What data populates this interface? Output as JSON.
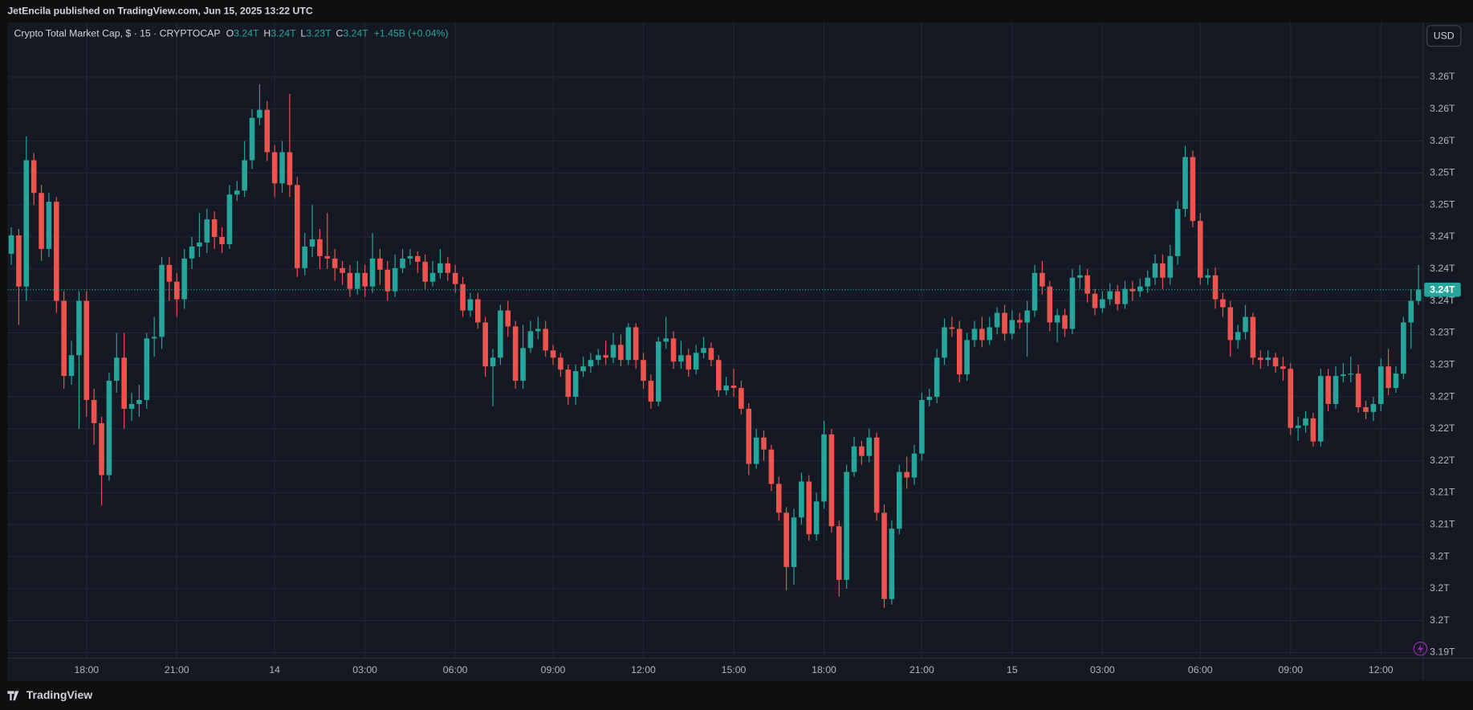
{
  "header": {
    "publisher": "JetEncila published on TradingView.com, Jun 15, 2025 13:22 UTC",
    "currency_button": "USD",
    "footer_brand": "TradingView"
  },
  "chart_data": {
    "type": "candlestick",
    "title": "Crypto Total Market Cap, $ · 15 · CRYPTOCAP",
    "ohlc_legend": [
      {
        "label": "O",
        "value": "3.24T"
      },
      {
        "label": "H",
        "value": "3.24T"
      },
      {
        "label": "L",
        "value": "3.23T"
      },
      {
        "label": "C",
        "value": "3.24T"
      }
    ],
    "change": "+1.45B (+0.04%)",
    "up_color": "#26a69a",
    "down_color": "#ef5350",
    "grid": true,
    "last_price": {
      "value": 3.2374,
      "label": "3.24T"
    },
    "ylim": [
      3.1913,
      3.2708
    ],
    "yticks": [
      {
        "value": 3.264,
        "label": "3.26T"
      },
      {
        "value": 3.26,
        "label": "3.26T"
      },
      {
        "value": 3.256,
        "label": "3.26T"
      },
      {
        "value": 3.252,
        "label": "3.25T"
      },
      {
        "value": 3.248,
        "label": "3.25T"
      },
      {
        "value": 3.244,
        "label": "3.24T"
      },
      {
        "value": 3.24,
        "label": "3.24T"
      },
      {
        "value": 3.236,
        "label": "3.24T"
      },
      {
        "value": 3.232,
        "label": "3.23T"
      },
      {
        "value": 3.228,
        "label": "3.23T"
      },
      {
        "value": 3.224,
        "label": "3.22T"
      },
      {
        "value": 3.22,
        "label": "3.22T"
      },
      {
        "value": 3.216,
        "label": "3.22T"
      },
      {
        "value": 3.212,
        "label": "3.21T"
      },
      {
        "value": 3.208,
        "label": "3.21T"
      },
      {
        "value": 3.204,
        "label": "3.2T"
      },
      {
        "value": 3.2,
        "label": "3.2T"
      },
      {
        "value": 3.196,
        "label": "3.2T"
      },
      {
        "value": 3.192,
        "label": "3.19T"
      }
    ],
    "categories": [
      null,
      null,
      null,
      null,
      null,
      null,
      null,
      null,
      null,
      null,
      "18:00",
      null,
      null,
      null,
      null,
      null,
      null,
      null,
      null,
      null,
      null,
      null,
      "21:00",
      null,
      null,
      null,
      null,
      null,
      null,
      null,
      null,
      null,
      null,
      null,
      null,
      "14",
      null,
      null,
      null,
      null,
      null,
      null,
      null,
      null,
      null,
      null,
      null,
      "03:00",
      null,
      null,
      null,
      null,
      null,
      null,
      null,
      null,
      null,
      null,
      null,
      "06:00",
      null,
      null,
      null,
      null,
      null,
      null,
      null,
      null,
      null,
      null,
      null,
      null,
      "09:00",
      null,
      null,
      null,
      null,
      null,
      null,
      null,
      null,
      null,
      null,
      null,
      "12:00",
      null,
      null,
      null,
      null,
      null,
      null,
      null,
      null,
      null,
      null,
      null,
      "15:00",
      null,
      null,
      null,
      null,
      null,
      null,
      null,
      null,
      null,
      null,
      null,
      "18:00",
      null,
      null,
      null,
      null,
      null,
      null,
      null,
      null,
      null,
      null,
      null,
      null,
      "21:00",
      null,
      null,
      null,
      null,
      null,
      null,
      null,
      null,
      null,
      null,
      null,
      "15",
      null,
      null,
      null,
      null,
      null,
      null,
      null,
      null,
      null,
      null,
      null,
      "03:00",
      null,
      null,
      null,
      null,
      null,
      null,
      null,
      null,
      null,
      null,
      null,
      null,
      "06:00",
      null,
      null,
      null,
      null,
      null,
      null,
      null,
      null,
      null,
      null,
      null,
      "09:00",
      null,
      null,
      null,
      null,
      null,
      null,
      null,
      null,
      null,
      null,
      null,
      "12:00",
      null,
      null,
      null,
      null,
      null
    ],
    "open": [
      3.2419,
      3.2442,
      3.2378,
      3.2536,
      3.2495,
      3.2425,
      3.2484,
      3.236,
      3.2266,
      3.2292,
      3.236,
      3.2236,
      3.2207,
      3.2142,
      3.226,
      3.2289,
      3.2225,
      3.2231,
      3.2236,
      3.2313,
      3.2315,
      3.2405,
      3.2384,
      3.2362,
      3.2413,
      3.2428,
      3.2433,
      3.2462,
      3.244,
      3.2431,
      3.2493,
      3.2498,
      3.2536,
      3.2589,
      3.2599,
      3.2546,
      3.2507,
      3.2546,
      3.2505,
      3.2401,
      3.2428,
      3.2437,
      3.2416,
      3.2413,
      3.2401,
      3.2395,
      3.2375,
      3.2395,
      3.2378,
      3.2413,
      3.2399,
      3.2372,
      3.2401,
      3.2413,
      3.2416,
      3.2409,
      3.2384,
      3.2395,
      3.2407,
      3.2395,
      3.2381,
      3.2348,
      3.2362,
      3.2333,
      3.2278,
      3.2289,
      3.2348,
      3.2328,
      3.226,
      3.2301,
      3.2322,
      3.2325,
      3.2298,
      3.2289,
      3.2274,
      3.224,
      3.2272,
      3.2278,
      3.2286,
      3.2292,
      3.2289,
      3.2305,
      3.2286,
      3.2327,
      3.2286,
      3.226,
      3.2234,
      3.2309,
      3.2313,
      3.2284,
      3.2292,
      3.2274,
      3.2295,
      3.2301,
      3.2286,
      3.2248,
      3.2254,
      3.2251,
      3.2225,
      3.2156,
      3.2189,
      3.2174,
      3.2131,
      3.2095,
      3.2027,
      3.2089,
      3.2134,
      3.2068,
      3.2109,
      3.2193,
      3.2078,
      3.2011,
      3.2146,
      3.2178,
      3.2166,
      3.2189,
      3.2095,
      3.1987,
      3.2075,
      3.2146,
      3.2139,
      3.2169,
      3.2236,
      3.224,
      3.2289,
      3.2327,
      3.2325,
      3.2268,
      3.2311,
      3.2325,
      3.2311,
      3.2327,
      3.2345,
      3.2319,
      3.2336,
      3.2333,
      3.2348,
      3.2395,
      3.2378,
      3.2333,
      3.2342,
      3.2325,
      3.2389,
      3.2392,
      3.2369,
      3.2351,
      3.2362,
      3.2372,
      3.2356,
      3.2375,
      3.2372,
      3.2378,
      3.2389,
      3.2407,
      3.2389,
      3.2416,
      3.2475,
      3.254,
      3.246,
      3.2389,
      3.2392,
      3.2362,
      3.2352,
      3.2311,
      3.2321,
      3.234,
      3.2289,
      3.2286,
      3.2289,
      3.2278,
      3.2275,
      3.2201,
      3.2204,
      3.2213,
      3.2184,
      3.2266,
      3.2231,
      3.2266,
      3.2268,
      3.2269,
      3.2227,
      3.2221,
      3.2231,
      3.2278,
      3.2251,
      3.2269,
      3.2333,
      3.236
    ],
    "high": [
      3.2452,
      3.245,
      3.2566,
      3.2545,
      3.2505,
      3.2495,
      3.249,
      3.2372,
      3.231,
      3.2372,
      3.2372,
      3.225,
      3.2215,
      3.227,
      3.232,
      3.232,
      3.2245,
      3.2255,
      3.232,
      3.234,
      3.2415,
      3.2415,
      3.2395,
      3.2425,
      3.244,
      3.247,
      3.2475,
      3.2472,
      3.2452,
      3.2505,
      3.251,
      3.256,
      3.26,
      3.2631,
      3.261,
      3.2555,
      3.256,
      3.2619,
      3.2515,
      3.2445,
      3.248,
      3.245,
      3.247,
      3.2425,
      3.241,
      3.2405,
      3.241,
      3.2405,
      3.2445,
      3.2425,
      3.241,
      3.2418,
      3.2425,
      3.2425,
      3.2422,
      3.2418,
      3.241,
      3.2425,
      3.2415,
      3.2405,
      3.239,
      3.237,
      3.237,
      3.234,
      3.23,
      3.2355,
      3.236,
      3.2335,
      3.233,
      3.2335,
      3.234,
      3.2335,
      3.2305,
      3.2295,
      3.228,
      3.228,
      3.229,
      3.2295,
      3.23,
      3.231,
      3.232,
      3.2318,
      3.2332,
      3.2332,
      3.2295,
      3.2268,
      3.2315,
      3.234,
      3.2322,
      3.231,
      3.23,
      3.2305,
      3.2315,
      3.2308,
      3.2292,
      3.2265,
      3.2275,
      3.226,
      3.2232,
      3.22,
      3.2198,
      3.218,
      3.214,
      3.2102,
      3.21,
      3.2145,
      3.2142,
      3.212,
      3.221,
      3.22,
      3.2085,
      3.2155,
      3.219,
      3.2185,
      3.22,
      3.2195,
      3.2105,
      3.2085,
      3.2155,
      3.2165,
      3.218,
      3.2245,
      3.225,
      3.23,
      3.2338,
      3.234,
      3.2335,
      3.232,
      3.2335,
      3.234,
      3.234,
      3.2352,
      3.2355,
      3.2348,
      3.2345,
      3.236,
      3.2405,
      3.241,
      3.2385,
      3.235,
      3.235,
      3.24,
      3.2405,
      3.24,
      3.2375,
      3.2372,
      3.2382,
      3.238,
      3.2385,
      3.2385,
      3.2388,
      3.2398,
      3.2418,
      3.2418,
      3.243,
      3.2485,
      3.2554,
      3.2548,
      3.247,
      3.24,
      3.2402,
      3.237,
      3.236,
      3.233,
      3.2355,
      3.2345,
      3.2298,
      3.2298,
      3.2295,
      3.229,
      3.2282,
      3.2215,
      3.2222,
      3.222,
      3.2275,
      3.2275,
      3.2278,
      3.2282,
      3.229,
      3.228,
      3.2235,
      3.224,
      3.2288,
      3.23,
      3.2278,
      3.234,
      3.2375,
      3.2405
    ],
    "low": [
      3.2405,
      3.233,
      3.236,
      3.248,
      3.241,
      3.2415,
      3.2345,
      3.225,
      3.2255,
      3.22,
      3.2215,
      3.218,
      3.2104,
      3.2135,
      3.2245,
      3.22,
      3.221,
      3.2215,
      3.2225,
      3.229,
      3.23,
      3.236,
      3.234,
      3.235,
      3.24,
      3.2415,
      3.242,
      3.2425,
      3.242,
      3.2425,
      3.2485,
      3.249,
      3.2525,
      3.258,
      3.2535,
      3.249,
      3.2495,
      3.249,
      3.239,
      3.2392,
      3.2415,
      3.24,
      3.24,
      3.2385,
      3.238,
      3.2365,
      3.2368,
      3.2365,
      3.237,
      3.238,
      3.236,
      3.2365,
      3.2395,
      3.2405,
      3.2395,
      3.2375,
      3.2378,
      3.2388,
      3.2385,
      3.237,
      3.234,
      3.234,
      3.2325,
      3.2265,
      3.2228,
      3.228,
      3.2315,
      3.225,
      3.225,
      3.2295,
      3.2312,
      3.229,
      3.228,
      3.2265,
      3.223,
      3.223,
      3.2265,
      3.227,
      3.228,
      3.228,
      3.2282,
      3.2278,
      3.228,
      3.2275,
      3.225,
      3.2225,
      3.2228,
      3.23,
      3.2275,
      3.2275,
      3.2265,
      3.2268,
      3.2288,
      3.2278,
      3.224,
      3.2242,
      3.224,
      3.2218,
      3.2142,
      3.215,
      3.216,
      3.2122,
      3.2085,
      3.1998,
      3.2005,
      3.208,
      3.206,
      3.206,
      3.21,
      3.207,
      3.199,
      3.2,
      3.214,
      3.2155,
      3.2158,
      3.2085,
      3.1976,
      3.198,
      3.2068,
      3.2125,
      3.213,
      3.216,
      3.2228,
      3.2232,
      3.228,
      3.2315,
      3.2258,
      3.226,
      3.2302,
      3.2302,
      3.2305,
      3.2318,
      3.231,
      3.2312,
      3.2325,
      3.229,
      3.234,
      3.2368,
      3.2322,
      3.2308,
      3.2315,
      3.2318,
      3.2375,
      3.2358,
      3.2342,
      3.2345,
      3.2355,
      3.2348,
      3.235,
      3.236,
      3.2365,
      3.237,
      3.238,
      3.2375,
      3.238,
      3.2405,
      3.2465,
      3.2452,
      3.238,
      3.238,
      3.235,
      3.234,
      3.229,
      3.23,
      3.2312,
      3.228,
      3.2275,
      3.2278,
      3.227,
      3.226,
      3.2192,
      3.2185,
      3.2195,
      3.2178,
      3.2178,
      3.2222,
      3.2225,
      3.2258,
      3.2258,
      3.222,
      3.2212,
      3.221,
      3.2222,
      3.2242,
      3.2245,
      3.2262,
      3.23,
      3.2355
    ],
    "close": [
      3.2442,
      3.2378,
      3.2536,
      3.2495,
      3.2425,
      3.2484,
      3.236,
      3.2266,
      3.2292,
      3.236,
      3.2236,
      3.2207,
      3.2142,
      3.226,
      3.2289,
      3.2225,
      3.2231,
      3.2236,
      3.2313,
      3.2315,
      3.2405,
      3.2384,
      3.2362,
      3.2413,
      3.2428,
      3.2433,
      3.2462,
      3.244,
      3.2431,
      3.2493,
      3.2498,
      3.2536,
      3.2589,
      3.2599,
      3.2546,
      3.2507,
      3.2546,
      3.2505,
      3.2401,
      3.2428,
      3.2437,
      3.2416,
      3.2413,
      3.2401,
      3.2395,
      3.2375,
      3.2395,
      3.2378,
      3.2413,
      3.2399,
      3.2372,
      3.2401,
      3.2413,
      3.2416,
      3.2409,
      3.2384,
      3.2395,
      3.2407,
      3.2395,
      3.2381,
      3.2348,
      3.2362,
      3.2333,
      3.2278,
      3.2289,
      3.2348,
      3.2328,
      3.226,
      3.2301,
      3.2322,
      3.2325,
      3.2298,
      3.2289,
      3.2274,
      3.224,
      3.2272,
      3.2278,
      3.2286,
      3.2292,
      3.2289,
      3.2305,
      3.2286,
      3.2327,
      3.2286,
      3.226,
      3.2234,
      3.2309,
      3.2313,
      3.2284,
      3.2292,
      3.2274,
      3.2295,
      3.2301,
      3.2286,
      3.2248,
      3.2254,
      3.2251,
      3.2225,
      3.2156,
      3.2189,
      3.2174,
      3.2131,
      3.2095,
      3.2027,
      3.2089,
      3.2134,
      3.2068,
      3.2109,
      3.2193,
      3.2078,
      3.2011,
      3.2146,
      3.2178,
      3.2166,
      3.2189,
      3.2095,
      3.1987,
      3.2075,
      3.2146,
      3.2139,
      3.2169,
      3.2236,
      3.224,
      3.2289,
      3.2327,
      3.2325,
      3.2268,
      3.2311,
      3.2325,
      3.2311,
      3.2327,
      3.2345,
      3.2319,
      3.2336,
      3.2333,
      3.2348,
      3.2395,
      3.2378,
      3.2333,
      3.2342,
      3.2325,
      3.2389,
      3.2392,
      3.2369,
      3.2351,
      3.2362,
      3.2372,
      3.2356,
      3.2375,
      3.2372,
      3.2378,
      3.2389,
      3.2407,
      3.2389,
      3.2416,
      3.2475,
      3.254,
      3.246,
      3.2389,
      3.2392,
      3.2362,
      3.2352,
      3.2311,
      3.2321,
      3.234,
      3.2289,
      3.2286,
      3.2289,
      3.2278,
      3.2275,
      3.2201,
      3.2204,
      3.2213,
      3.2184,
      3.2266,
      3.2231,
      3.2266,
      3.2268,
      3.2269,
      3.2227,
      3.2221,
      3.2231,
      3.2278,
      3.2251,
      3.2269,
      3.2333,
      3.236,
      3.2374
    ]
  }
}
